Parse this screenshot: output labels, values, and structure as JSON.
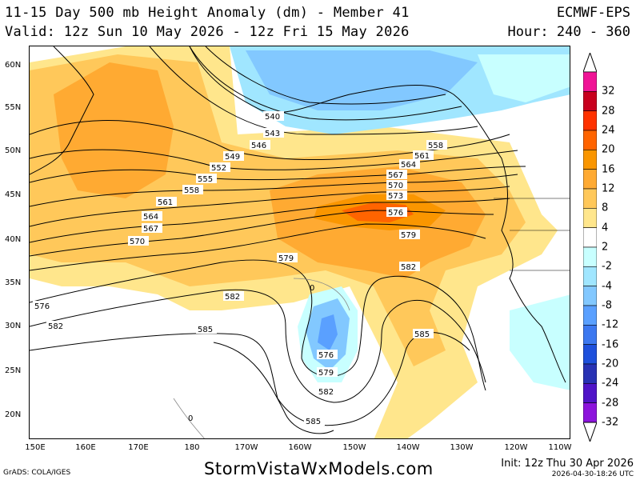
{
  "header": {
    "title": "11-15 Day 500 mb Height Anomaly (dm) - Member 41",
    "valid": "Valid: 12z Sun 10 May 2026 - 12z Fri 15 May 2026",
    "model": "ECMWF-EPS",
    "hour": "Hour: 240 - 360"
  },
  "axes": {
    "lat_labels": [
      "60N",
      "55N",
      "50N",
      "45N",
      "40N",
      "35N",
      "30N",
      "25N",
      "20N"
    ],
    "lon_labels": [
      "150E",
      "160E",
      "170E",
      "180",
      "170W",
      "160W",
      "150W",
      "140W",
      "130W",
      "120W",
      "110W"
    ]
  },
  "colorbar": {
    "labels": [
      "32",
      "28",
      "24",
      "20",
      "16",
      "12",
      "8",
      "4",
      "2",
      "-2",
      "-4",
      "-8",
      "-12",
      "-16",
      "-20",
      "-24",
      "-28",
      "-32"
    ],
    "colors": [
      "#f01496",
      "#c8001e",
      "#ff3200",
      "#ff6400",
      "#fa9600",
      "#ffaa32",
      "#ffc85a",
      "#ffe68c",
      "#ffffff",
      "#c8ffff",
      "#a0e6ff",
      "#82c8ff",
      "#5aa0ff",
      "#3c78f0",
      "#1e50dc",
      "#2832b4",
      "#5014c8",
      "#8c14dc"
    ]
  },
  "contours": {
    "labels": [
      "540",
      "543",
      "546",
      "549",
      "552",
      "555",
      "558",
      "561",
      "564",
      "567",
      "570",
      "573",
      "576",
      "579",
      "582",
      "585",
      "558",
      "561",
      "564",
      "567",
      "570",
      "573",
      "576",
      "579",
      "582",
      "585",
      "576",
      "579",
      "582",
      "585",
      "0",
      "0"
    ]
  },
  "footer": {
    "site": "StormVistaWxModels.com",
    "grads": "GrADS: COLA/IGES",
    "init": "Init: 12z Thu 30 Apr 2026",
    "stamp": "2026-04-30-18:26 UTC"
  }
}
